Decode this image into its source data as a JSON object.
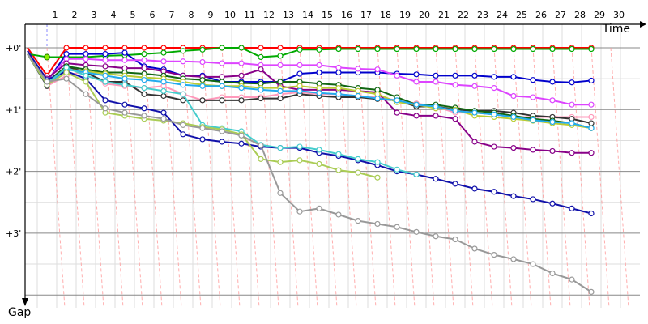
{
  "chart_data": {
    "type": "line",
    "x_label": "Time",
    "y_label": "Gap",
    "x_ticks": [
      "1",
      "2",
      "3",
      "4",
      "5",
      "6",
      "7",
      "8",
      "9",
      "10",
      "11",
      "12",
      "13",
      "14",
      "15",
      "16",
      "17",
      "18",
      "19",
      "20",
      "21",
      "22",
      "23",
      "24",
      "25",
      "26",
      "27",
      "28",
      "29",
      "30"
    ],
    "y_ticks": [
      "+0'",
      "+1'",
      "+2'",
      "+3'"
    ],
    "x_range": [
      0.5,
      31.3
    ],
    "y_range_minutes": [
      -0.35,
      4.05
    ],
    "grid": true,
    "series": [
      {
        "color": "#ff0000",
        "values": [
          0,
          0.45,
          0,
          0,
          0,
          0,
          0,
          0,
          0,
          0,
          0,
          0,
          0,
          0,
          0,
          0,
          0,
          0,
          0,
          0,
          0,
          0,
          0,
          0,
          0,
          0,
          0,
          0,
          0,
          0
        ]
      },
      {
        "color": "#00aa00",
        "values": [
          0.1,
          0.15,
          0.15,
          0.15,
          0.13,
          0.12,
          0.1,
          0.08,
          0.05,
          0.03,
          0,
          0,
          0.15,
          0.13,
          0.03,
          0.03,
          0.02,
          0.02,
          0.02,
          0.02,
          0.02,
          0.02,
          0.02,
          0.02,
          0.02,
          0.02,
          0.02,
          0.02,
          0.02,
          0.02
        ]
      },
      {
        "color": "#0000cc",
        "values": [
          0.05,
          0.55,
          0.1,
          0.1,
          0.1,
          0.08,
          0.3,
          0.35,
          0.45,
          0.45,
          0.55,
          0.55,
          0.55,
          0.55,
          0.42,
          0.4,
          0.4,
          0.4,
          0.4,
          0.42,
          0.43,
          0.45,
          0.45,
          0.45,
          0.47,
          0.47,
          0.52,
          0.55,
          0.56,
          0.53
        ]
      },
      {
        "color": "#dd44ff",
        "values": [
          0.1,
          0.52,
          0.18,
          0.18,
          0.2,
          0.2,
          0.2,
          0.22,
          0.22,
          0.23,
          0.25,
          0.25,
          0.28,
          0.28,
          0.28,
          0.28,
          0.32,
          0.34,
          0.35,
          0.45,
          0.55,
          0.55,
          0.6,
          0.62,
          0.65,
          0.78,
          0.8,
          0.85,
          0.92,
          0.92
        ]
      },
      {
        "color": "#ff99bb",
        "values": [
          0.05,
          0.62,
          0.45,
          0.38,
          0.58,
          0.62,
          0.65,
          0.62,
          0.75,
          0.85,
          0.8,
          0.8,
          0.8,
          0.75,
          0.72,
          0.75,
          0.75,
          0.78,
          0.8,
          0.85,
          0.9,
          0.95,
          1.05,
          1.05,
          1.08,
          1.12,
          1.12,
          1.12,
          1.12,
          1.12
        ]
      },
      {
        "color": "#880088",
        "values": [
          0.1,
          0.5,
          0.25,
          0.28,
          0.3,
          0.33,
          0.33,
          0.38,
          0.45,
          0.47,
          0.47,
          0.45,
          0.35,
          0.62,
          0.68,
          0.68,
          0.68,
          0.7,
          0.72,
          1.05,
          1.1,
          1.1,
          1.15,
          1.52,
          1.6,
          1.62,
          1.65,
          1.67,
          1.7,
          1.7
        ]
      },
      {
        "color": "#333333",
        "values": [
          0.1,
          0.62,
          0.3,
          0.4,
          0.55,
          0.55,
          0.75,
          0.78,
          0.85,
          0.85,
          0.85,
          0.85,
          0.82,
          0.82,
          0.75,
          0.78,
          0.8,
          0.8,
          0.83,
          0.85,
          0.95,
          0.95,
          1.0,
          1.02,
          1.02,
          1.05,
          1.1,
          1.12,
          1.15,
          1.22
        ]
      },
      {
        "color": "#116611",
        "values": [
          0.1,
          0.55,
          0.3,
          0.35,
          0.4,
          0.4,
          0.42,
          0.45,
          0.5,
          0.52,
          0.55,
          0.57,
          0.58,
          0.55,
          0.55,
          0.58,
          0.6,
          0.65,
          0.68,
          0.8,
          0.92,
          0.92,
          0.97,
          1.02,
          1.05,
          1.1,
          1.15,
          1.18,
          1.22,
          1.3
        ]
      },
      {
        "color": "#bbcc33",
        "values": [
          0.1,
          0.55,
          0.35,
          0.38,
          0.42,
          0.45,
          0.48,
          0.5,
          0.55,
          0.6,
          0.62,
          0.62,
          0.65,
          0.65,
          0.62,
          0.65,
          0.65,
          0.7,
          0.75,
          0.88,
          0.92,
          0.98,
          1.0,
          1.1,
          1.12,
          1.15,
          1.18,
          1.22,
          1.25,
          1.3
        ]
      },
      {
        "color": "#22aaee",
        "values": [
          0.1,
          0.6,
          0.35,
          0.4,
          0.45,
          0.5,
          0.52,
          0.55,
          0.6,
          0.62,
          0.62,
          0.65,
          0.68,
          0.7,
          0.7,
          0.73,
          0.75,
          0.78,
          0.82,
          0.85,
          0.92,
          0.95,
          1.02,
          1.05,
          1.08,
          1.12,
          1.17,
          1.2,
          1.22,
          1.3
        ]
      },
      {
        "color": "#1111aa",
        "values": [
          0.05,
          0.52,
          0.38,
          0.5,
          0.85,
          0.92,
          0.98,
          1.05,
          1.4,
          1.48,
          1.52,
          1.55,
          1.6,
          1.62,
          1.62,
          1.7,
          1.75,
          1.82,
          1.9,
          2.0,
          2.05,
          2.12,
          2.2,
          2.28,
          2.33,
          2.4,
          2.45,
          2.52,
          2.6,
          2.68
        ]
      },
      {
        "color": "#44cccc",
        "values": [
          0.1,
          0.58,
          0.32,
          0.45,
          0.55,
          0.6,
          0.65,
          0.7,
          0.75,
          1.25,
          1.3,
          1.35,
          1.57,
          1.62,
          1.6,
          1.65,
          1.72,
          1.8,
          1.85,
          1.97,
          2.05
        ]
      },
      {
        "color": "#aacc55",
        "values": [
          0.1,
          0.6,
          0.4,
          0.55,
          1.05,
          1.1,
          1.15,
          1.18,
          1.22,
          1.28,
          1.32,
          1.4,
          1.8,
          1.85,
          1.82,
          1.88,
          1.98,
          2.02,
          2.1
        ]
      },
      {
        "color": "#999999",
        "values": [
          0.1,
          0.55,
          0.5,
          0.75,
          0.98,
          1.05,
          1.1,
          1.15,
          1.25,
          1.3,
          1.35,
          1.42,
          1.58,
          2.35,
          2.65,
          2.6,
          2.7,
          2.8,
          2.85,
          2.9,
          2.98,
          3.05,
          3.1,
          3.25,
          3.35,
          3.42,
          3.5,
          3.65,
          3.75,
          3.95
        ]
      }
    ]
  }
}
